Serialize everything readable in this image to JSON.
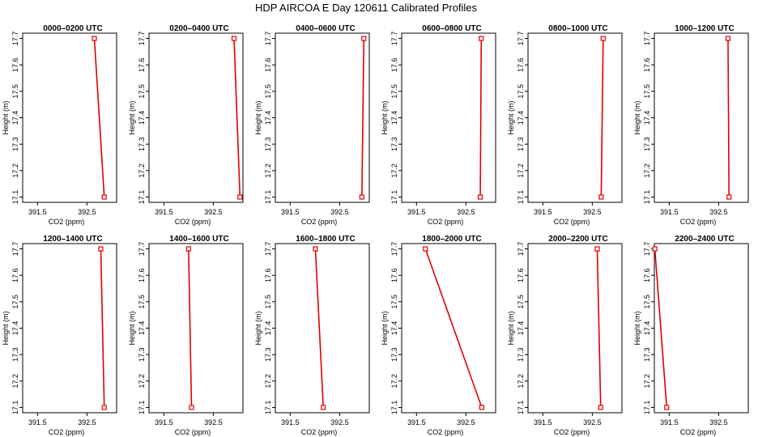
{
  "figure": {
    "title": "HDP AIRCOA E  Day 120611  Calibrated Profiles"
  },
  "chart_data": [
    {
      "type": "line",
      "title": "0000–0200 UTC",
      "xlabel": "CO2 (ppm)",
      "ylabel": "Height (m)",
      "x_ticks": [
        "391.5",
        "392.5"
      ],
      "y_ticks": [
        "17.1",
        "17.2",
        "17.3",
        "17.4",
        "17.5",
        "17.6",
        "17.7"
      ],
      "xlim": [
        391.2,
        393.1
      ],
      "ylim": [
        17.08,
        17.72
      ],
      "series": [
        {
          "points": [
            {
              "x": 392.65,
              "y": 17.7
            },
            {
              "x": 392.85,
              "y": 17.1
            }
          ]
        }
      ]
    },
    {
      "type": "line",
      "title": "0200–0400 UTC",
      "xlabel": "CO2 (ppm)",
      "ylabel": "Height (m)",
      "x_ticks": [
        "391.5",
        "392.5"
      ],
      "y_ticks": [
        "17.1",
        "17.2",
        "17.3",
        "17.4",
        "17.5",
        "17.6",
        "17.7"
      ],
      "xlim": [
        391.2,
        393.1
      ],
      "ylim": [
        17.08,
        17.72
      ],
      "series": [
        {
          "points": [
            {
              "x": 392.92,
              "y": 17.7
            },
            {
              "x": 393.04,
              "y": 17.1
            }
          ]
        }
      ]
    },
    {
      "type": "line",
      "title": "0400–0600 UTC",
      "xlabel": "CO2 (ppm)",
      "ylabel": "Height (m)",
      "x_ticks": [
        "391.5",
        "392.5"
      ],
      "y_ticks": [
        "17.1",
        "17.2",
        "17.3",
        "17.4",
        "17.5",
        "17.6",
        "17.7"
      ],
      "xlim": [
        391.2,
        393.1
      ],
      "ylim": [
        17.08,
        17.72
      ],
      "series": [
        {
          "points": [
            {
              "x": 392.99,
              "y": 17.7
            },
            {
              "x": 392.95,
              "y": 17.1
            }
          ]
        }
      ]
    },
    {
      "type": "line",
      "title": "0600–0800 UTC",
      "xlabel": "CO2 (ppm)",
      "ylabel": "Height (m)",
      "x_ticks": [
        "391.5",
        "392.5"
      ],
      "y_ticks": [
        "17.1",
        "17.2",
        "17.3",
        "17.4",
        "17.5",
        "17.6",
        "17.7"
      ],
      "xlim": [
        391.2,
        393.1
      ],
      "ylim": [
        17.08,
        17.72
      ],
      "series": [
        {
          "points": [
            {
              "x": 392.81,
              "y": 17.7
            },
            {
              "x": 392.79,
              "y": 17.1
            }
          ]
        }
      ]
    },
    {
      "type": "line",
      "title": "0800–1000 UTC",
      "xlabel": "CO2 (ppm)",
      "ylabel": "Height (m)",
      "x_ticks": [
        "391.5",
        "392.5"
      ],
      "y_ticks": [
        "17.1",
        "17.2",
        "17.3",
        "17.4",
        "17.5",
        "17.6",
        "17.7"
      ],
      "xlim": [
        391.2,
        393.1
      ],
      "ylim": [
        17.08,
        17.72
      ],
      "series": [
        {
          "points": [
            {
              "x": 392.72,
              "y": 17.7
            },
            {
              "x": 392.68,
              "y": 17.1
            }
          ]
        }
      ]
    },
    {
      "type": "line",
      "title": "1000–1200 UTC",
      "xlabel": "CO2 (ppm)",
      "ylabel": "Height (m)",
      "x_ticks": [
        "391.5",
        "392.5"
      ],
      "y_ticks": [
        "17.1",
        "17.2",
        "17.3",
        "17.4",
        "17.5",
        "17.6",
        "17.7"
      ],
      "xlim": [
        391.2,
        393.1
      ],
      "ylim": [
        17.08,
        17.72
      ],
      "series": [
        {
          "points": [
            {
              "x": 392.69,
              "y": 17.7
            },
            {
              "x": 392.71,
              "y": 17.1
            }
          ]
        }
      ]
    },
    {
      "type": "line",
      "title": "1200–1400 UTC",
      "xlabel": "CO2 (ppm)",
      "ylabel": "Height (m)",
      "x_ticks": [
        "391.5",
        "392.5"
      ],
      "y_ticks": [
        "17.1",
        "17.2",
        "17.3",
        "17.4",
        "17.5",
        "17.6",
        "17.7"
      ],
      "xlim": [
        391.2,
        393.1
      ],
      "ylim": [
        17.08,
        17.72
      ],
      "series": [
        {
          "points": [
            {
              "x": 392.78,
              "y": 17.7
            },
            {
              "x": 392.85,
              "y": 17.1
            }
          ]
        }
      ]
    },
    {
      "type": "line",
      "title": "1400–1600 UTC",
      "xlabel": "CO2 (ppm)",
      "ylabel": "Height (m)",
      "x_ticks": [
        "391.5",
        "392.5"
      ],
      "y_ticks": [
        "17.1",
        "17.2",
        "17.3",
        "17.4",
        "17.5",
        "17.6",
        "17.7"
      ],
      "xlim": [
        391.2,
        393.1
      ],
      "ylim": [
        17.08,
        17.72
      ],
      "series": [
        {
          "points": [
            {
              "x": 392.0,
              "y": 17.7
            },
            {
              "x": 392.06,
              "y": 17.1
            }
          ]
        }
      ]
    },
    {
      "type": "line",
      "title": "1600–1800 UTC",
      "xlabel": "CO2 (ppm)",
      "ylabel": "Height (m)",
      "x_ticks": [
        "391.5",
        "392.5"
      ],
      "y_ticks": [
        "17.1",
        "17.2",
        "17.3",
        "17.4",
        "17.5",
        "17.6",
        "17.7"
      ],
      "xlim": [
        391.2,
        393.1
      ],
      "ylim": [
        17.08,
        17.72
      ],
      "series": [
        {
          "points": [
            {
              "x": 392.01,
              "y": 17.7
            },
            {
              "x": 392.17,
              "y": 17.1
            }
          ]
        }
      ]
    },
    {
      "type": "line",
      "title": "1800–2000 UTC",
      "xlabel": "CO2 (ppm)",
      "ylabel": "Height (m)",
      "x_ticks": [
        "391.5",
        "392.5"
      ],
      "y_ticks": [
        "17.1",
        "17.2",
        "17.3",
        "17.4",
        "17.5",
        "17.6",
        "17.7"
      ],
      "xlim": [
        391.2,
        393.1
      ],
      "ylim": [
        17.08,
        17.72
      ],
      "series": [
        {
          "points": [
            {
              "x": 391.68,
              "y": 17.7
            },
            {
              "x": 392.82,
              "y": 17.1
            }
          ]
        }
      ]
    },
    {
      "type": "line",
      "title": "2000–2200 UTC",
      "xlabel": "CO2 (ppm)",
      "ylabel": "Height (m)",
      "x_ticks": [
        "391.5",
        "392.5"
      ],
      "y_ticks": [
        "17.1",
        "17.2",
        "17.3",
        "17.4",
        "17.5",
        "17.6",
        "17.7"
      ],
      "xlim": [
        391.2,
        393.1
      ],
      "ylim": [
        17.08,
        17.72
      ],
      "series": [
        {
          "points": [
            {
              "x": 392.6,
              "y": 17.7
            },
            {
              "x": 392.67,
              "y": 17.1
            }
          ]
        }
      ]
    },
    {
      "type": "line",
      "title": "2200–2400 UTC",
      "xlabel": "CO2 (ppm)",
      "ylabel": "Height (m)",
      "x_ticks": [
        "391.5",
        "392.5"
      ],
      "y_ticks": [
        "17.1",
        "17.2",
        "17.3",
        "17.4",
        "17.5",
        "17.6",
        "17.7"
      ],
      "xlim": [
        391.2,
        393.1
      ],
      "ylim": [
        17.08,
        17.72
      ],
      "series": [
        {
          "points": [
            {
              "x": 391.21,
              "y": 17.7
            },
            {
              "x": 391.45,
              "y": 17.1
            }
          ]
        }
      ]
    }
  ],
  "colors": {
    "line": "#e00000",
    "marker": "#e00000",
    "axis": "#000000"
  }
}
